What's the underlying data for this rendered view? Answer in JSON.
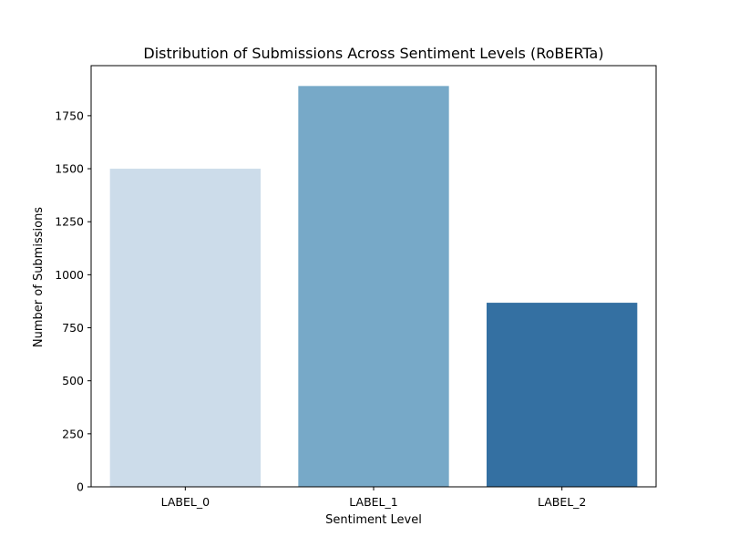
{
  "chart_data": {
    "type": "bar",
    "title": "Distribution of Submissions Across Sentiment Levels (RoBERTa)",
    "xlabel": "Sentiment Level",
    "ylabel": "Number of Submissions",
    "categories": [
      "LABEL_0",
      "LABEL_1",
      "LABEL_2"
    ],
    "values": [
      1500,
      1890,
      868
    ],
    "colors": [
      "#ccdcea",
      "#77a9c8",
      "#3470a2"
    ],
    "ylim": [
      0,
      1986
    ],
    "yticks": [
      0,
      250,
      500,
      750,
      1000,
      1250,
      1500,
      1750
    ],
    "grid": false,
    "legend": "none"
  }
}
